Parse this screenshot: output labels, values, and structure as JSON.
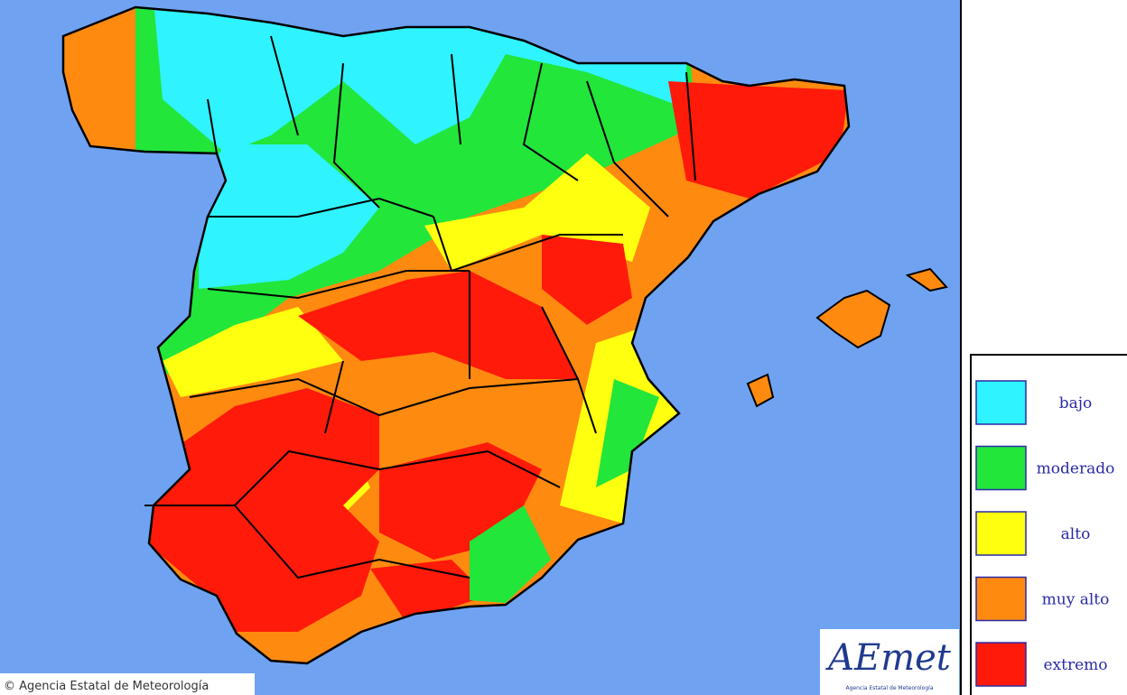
{
  "legend": {
    "items": [
      {
        "label": "bajo",
        "color": "#2ff3ff"
      },
      {
        "label": "moderado",
        "color": "#22e63a"
      },
      {
        "label": "alto",
        "color": "#ffff10"
      },
      {
        "label": "muy alto",
        "color": "#ff8a10"
      },
      {
        "label": "extremo",
        "color": "#ff1a0a"
      }
    ]
  },
  "footer": {
    "copyright": "© Agencia Estatal de Meteorología"
  },
  "logo": {
    "name": "AEmet",
    "subtitle": "Agencia Estatal de Meteorología"
  }
}
